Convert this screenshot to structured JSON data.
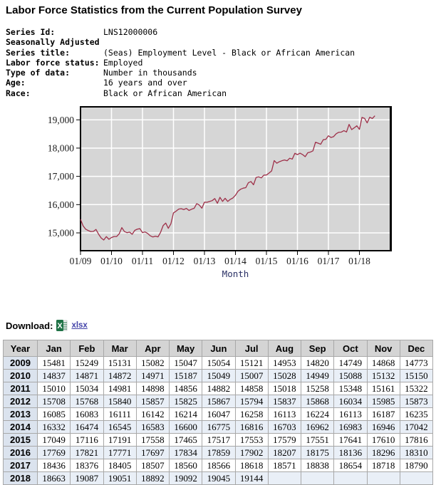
{
  "page": {
    "title": "Labor Force Statistics from the Current Population Survey"
  },
  "series_info": {
    "rows": [
      {
        "label": "Series Id:",
        "value": "LNS12000006"
      },
      {
        "label": "Seasonally Adjusted",
        "value": ""
      },
      {
        "label": "Series title:",
        "value": "(Seas) Employment Level - Black or African American"
      },
      {
        "label": "Labor force status:",
        "value": "Employed"
      },
      {
        "label": "Type of data:",
        "value": "Number in thousands"
      },
      {
        "label": "Age:",
        "value": "16 years and over"
      },
      {
        "label": "Race:",
        "value": "Black or African American"
      }
    ]
  },
  "chart_data": {
    "type": "line",
    "title": "",
    "xlabel": "Month",
    "ylabel": "",
    "start_month": "2009-01",
    "end_month": "2018-07",
    "x_tick_labels": [
      "01/09",
      "01/10",
      "01/11",
      "01/12",
      "01/13",
      "01/14",
      "01/15",
      "01/16",
      "01/17",
      "01/18"
    ],
    "x_tick_month_indices": [
      0,
      12,
      24,
      36,
      48,
      60,
      72,
      84,
      96,
      108
    ],
    "y_ticks": [
      15000,
      16000,
      17000,
      18000,
      19000
    ],
    "y_tick_labels": [
      "15,000",
      "16,000",
      "17,000",
      "18,000",
      "19,000"
    ],
    "ylim": [
      14370,
      19460
    ],
    "grid": true,
    "legend": "none",
    "line_color": "#9e3049",
    "plot_bg": "#d6d6d6",
    "grid_color": "#ffffff",
    "values": [
      15481,
      15249,
      15131,
      15082,
      15047,
      15054,
      15121,
      14953,
      14820,
      14749,
      14868,
      14773,
      14837,
      14871,
      14872,
      14971,
      15187,
      15049,
      15007,
      15028,
      14949,
      15088,
      15132,
      15150,
      15010,
      15034,
      14981,
      14898,
      14856,
      14882,
      14858,
      15018,
      15258,
      15348,
      15161,
      15322,
      15708,
      15768,
      15840,
      15857,
      15825,
      15867,
      15794,
      15837,
      15868,
      16034,
      15985,
      15873,
      16085,
      16083,
      16111,
      16142,
      16214,
      16047,
      16258,
      16113,
      16224,
      16113,
      16187,
      16235,
      16332,
      16474,
      16545,
      16583,
      16600,
      16775,
      16816,
      16703,
      16962,
      16983,
      16946,
      17042,
      17049,
      17116,
      17191,
      17558,
      17465,
      17517,
      17553,
      17579,
      17551,
      17641,
      17610,
      17816,
      17769,
      17821,
      17771,
      17697,
      17834,
      17859,
      17902,
      18207,
      18175,
      18136,
      18296,
      18310,
      18436,
      18376,
      18405,
      18507,
      18560,
      18566,
      18618,
      18571,
      18838,
      18654,
      18718,
      18790,
      18663,
      19087,
      19051,
      18892,
      19092,
      19045,
      19144
    ]
  },
  "download": {
    "label": "Download:",
    "link_label": "xlsx",
    "icon": "excel-icon"
  },
  "table": {
    "columns": [
      "Year",
      "Jan",
      "Feb",
      "Mar",
      "Apr",
      "May",
      "Jun",
      "Jul",
      "Aug",
      "Sep",
      "Oct",
      "Nov",
      "Dec"
    ],
    "rows": [
      {
        "year": "2009",
        "values": [
          "15481",
          "15249",
          "15131",
          "15082",
          "15047",
          "15054",
          "15121",
          "14953",
          "14820",
          "14749",
          "14868",
          "14773"
        ]
      },
      {
        "year": "2010",
        "values": [
          "14837",
          "14871",
          "14872",
          "14971",
          "15187",
          "15049",
          "15007",
          "15028",
          "14949",
          "15088",
          "15132",
          "15150"
        ]
      },
      {
        "year": "2011",
        "values": [
          "15010",
          "15034",
          "14981",
          "14898",
          "14856",
          "14882",
          "14858",
          "15018",
          "15258",
          "15348",
          "15161",
          "15322"
        ]
      },
      {
        "year": "2012",
        "values": [
          "15708",
          "15768",
          "15840",
          "15857",
          "15825",
          "15867",
          "15794",
          "15837",
          "15868",
          "16034",
          "15985",
          "15873"
        ]
      },
      {
        "year": "2013",
        "values": [
          "16085",
          "16083",
          "16111",
          "16142",
          "16214",
          "16047",
          "16258",
          "16113",
          "16224",
          "16113",
          "16187",
          "16235"
        ]
      },
      {
        "year": "2014",
        "values": [
          "16332",
          "16474",
          "16545",
          "16583",
          "16600",
          "16775",
          "16816",
          "16703",
          "16962",
          "16983",
          "16946",
          "17042"
        ]
      },
      {
        "year": "2015",
        "values": [
          "17049",
          "17116",
          "17191",
          "17558",
          "17465",
          "17517",
          "17553",
          "17579",
          "17551",
          "17641",
          "17610",
          "17816"
        ]
      },
      {
        "year": "2016",
        "values": [
          "17769",
          "17821",
          "17771",
          "17697",
          "17834",
          "17859",
          "17902",
          "18207",
          "18175",
          "18136",
          "18296",
          "18310"
        ]
      },
      {
        "year": "2017",
        "values": [
          "18436",
          "18376",
          "18405",
          "18507",
          "18560",
          "18566",
          "18618",
          "18571",
          "18838",
          "18654",
          "18718",
          "18790"
        ]
      },
      {
        "year": "2018",
        "values": [
          "18663",
          "19087",
          "19051",
          "18892",
          "19092",
          "19045",
          "19144",
          "",
          "",
          "",
          "",
          ""
        ]
      }
    ]
  }
}
